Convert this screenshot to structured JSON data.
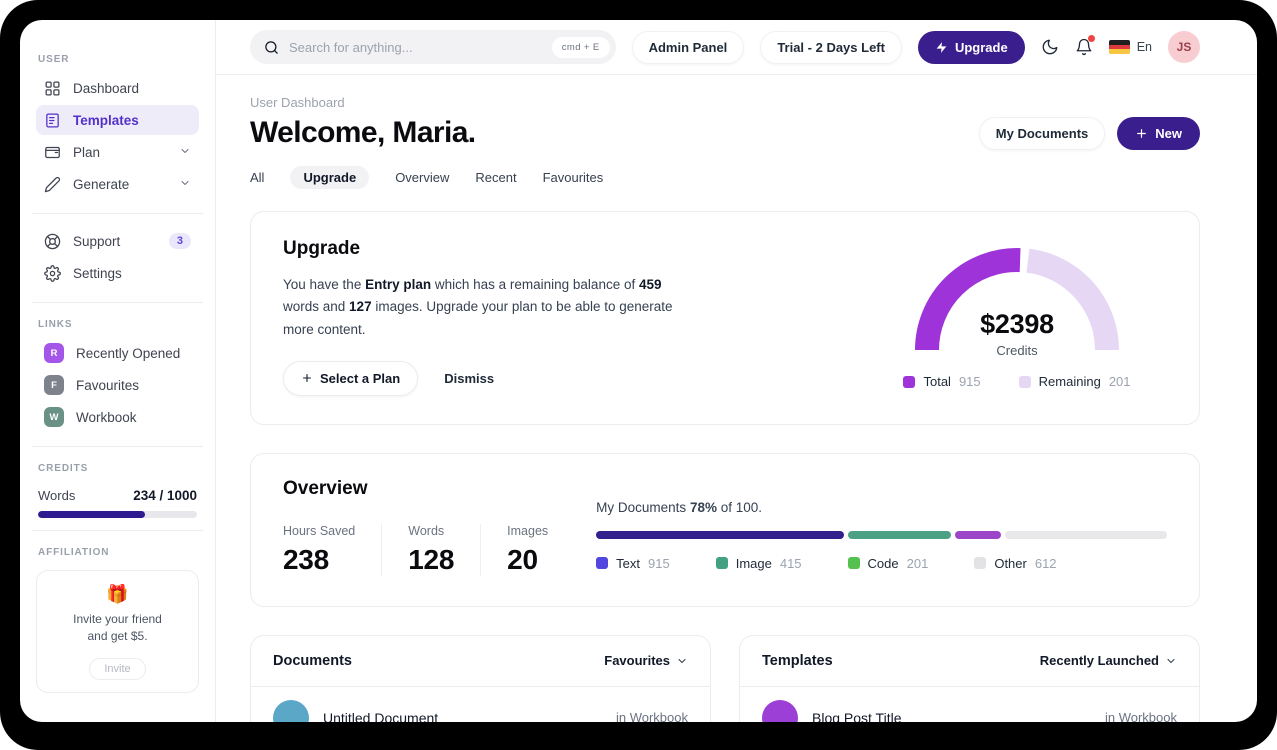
{
  "topbar": {
    "search": {
      "placeholder": "Search for anything...",
      "shortcut": "cmd + E"
    },
    "admin_panel_label": "Admin Panel",
    "trial_label": "Trial - 2 Days Left",
    "upgrade_label": "Upgrade",
    "language_label": "En",
    "avatar_initials": "JS"
  },
  "sidebar": {
    "headings": {
      "user": "USER",
      "links": "LINKS",
      "credits": "CREDITS",
      "affiliation": "AFFILIATION"
    },
    "nav": [
      {
        "label": "Dashboard"
      },
      {
        "label": "Templates"
      },
      {
        "label": "Plan"
      },
      {
        "label": "Generate"
      }
    ],
    "secondary": [
      {
        "label": "Support",
        "badge": "3"
      },
      {
        "label": "Settings"
      }
    ],
    "links": [
      {
        "initial": "R",
        "label": "Recently Opened",
        "color": "#a456e8"
      },
      {
        "initial": "F",
        "label": "Favourites",
        "color": "#7d828c"
      },
      {
        "initial": "W",
        "label": "Workbook",
        "color": "#6a9186"
      }
    ],
    "credits": {
      "label": "Words",
      "value": "234 / 1000",
      "fill_width": "67%",
      "fill_color": "#2d1b8f"
    },
    "affiliation": {
      "emoji": "🎁",
      "line1": "Invite your friend",
      "line2": "and get $5.",
      "button_label": "Invite"
    }
  },
  "header": {
    "breadcrumb": "User Dashboard",
    "title": "Welcome, Maria.",
    "my_documents_label": "My Documents",
    "new_label": "New"
  },
  "tabs": [
    {
      "label": "All"
    },
    {
      "label": "Upgrade"
    },
    {
      "label": "Overview"
    },
    {
      "label": "Recent"
    },
    {
      "label": "Favourites"
    }
  ],
  "upgrade_card": {
    "title": "Upgrade",
    "body": [
      {
        "t": "You have the "
      },
      {
        "t": "Entry plan",
        "b": true
      },
      {
        "t": " which has a remaining balance of "
      },
      {
        "t": "459",
        "b": true
      },
      {
        "t": " words and "
      },
      {
        "t": "127",
        "b": true
      },
      {
        "t": " images. Upgrade your plan to be able to generate more content."
      }
    ],
    "select_plan_label": "Select a Plan",
    "dismiss_label": "Dismiss",
    "gauge": {
      "amount": "$2398",
      "caption": "Credits",
      "legend": [
        {
          "label": "Total",
          "value": "915",
          "color": "#9d33d8"
        },
        {
          "label": "Remaining",
          "value": "201",
          "color": "#e6d7f4"
        }
      ]
    }
  },
  "overview_card": {
    "title": "Overview",
    "stats": [
      {
        "label": "Hours Saved",
        "value": "238"
      },
      {
        "label": "Words",
        "value": "128"
      },
      {
        "label": "Images",
        "value": "20"
      }
    ],
    "caption": [
      {
        "t": "My Documents "
      },
      {
        "t": "78%",
        "b": true
      },
      {
        "t": " of 100."
      }
    ],
    "segments": [
      {
        "width": "43.5%",
        "color": "#32218c"
      },
      {
        "width": "18%",
        "color": "#4aa184"
      },
      {
        "width": "8%",
        "color": "#9c45c9"
      },
      {
        "width": "rest",
        "color": "#e8e8ea"
      }
    ],
    "legend": [
      {
        "label": "Text",
        "value": "915",
        "color": "#5246e0"
      },
      {
        "label": "Image",
        "value": "415",
        "color": "#43a183"
      },
      {
        "label": "Code",
        "value": "201",
        "color": "#55c14e"
      },
      {
        "label": "Other",
        "value": "612",
        "color": "#e3e3e5"
      }
    ]
  },
  "documents_card": {
    "title": "Documents",
    "filter_label": "Favourites",
    "rows": [
      {
        "name": "Untitled Document",
        "meta": "in Workbook",
        "color": "#5aa7c7"
      }
    ]
  },
  "templates_card": {
    "title": "Templates",
    "filter_label": "Recently Launched",
    "rows": [
      {
        "name": "Blog Post Title",
        "meta": "in Workbook",
        "color": "#9c3fd6"
      }
    ]
  },
  "chart_data": [
    {
      "type": "pie",
      "subtype": "half-donut-gauge",
      "title": "Credits",
      "center_value": "$2398",
      "slices": [
        {
          "label": "Total",
          "value": 915
        },
        {
          "label": "Remaining",
          "value": 201
        }
      ],
      "colors": [
        "#9d33d8",
        "#e6d7f4"
      ]
    },
    {
      "type": "bar",
      "subtype": "stacked-progress",
      "title": "My Documents 78% of 100.",
      "categories": [
        "Text",
        "Image",
        "Code",
        "Other"
      ],
      "values": [
        915,
        415,
        201,
        612
      ],
      "colors": [
        "#32218c",
        "#4aa184",
        "#9c45c9",
        "#e8e8ea"
      ]
    }
  ]
}
